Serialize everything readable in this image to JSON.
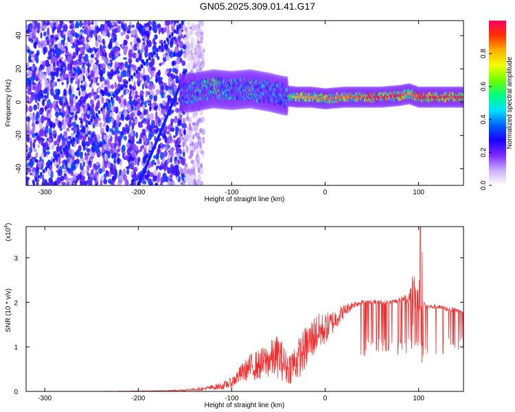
{
  "title": "GN05.2025.309.01.41.G17",
  "chart_data": [
    {
      "type": "heatmap",
      "title": "GN05.2025.309.01.41.G17",
      "xlabel": "Height of straight line (km)",
      "ylabel": "Frequency (Hz)",
      "xlim": [
        -320,
        148
      ],
      "ylim": [
        -50,
        49
      ],
      "xticks": [
        -300,
        -200,
        -100,
        0,
        100
      ],
      "yticks": [
        -40,
        -20,
        0,
        20,
        40
      ],
      "xtick_labels": [
        "-300",
        "-200",
        "-100",
        "0",
        "100"
      ],
      "ytick_labels": [
        "-40",
        "-20",
        "0",
        "20",
        "40"
      ],
      "colorbar": {
        "label": "Normalized spectral amplitude",
        "range": [
          0.0,
          1.0
        ],
        "ticks": [
          0.0,
          0.2,
          0.4,
          0.6,
          0.8
        ],
        "tick_labels": [
          "0.0",
          "0.2",
          "0.4",
          "0.6",
          "0.8"
        ],
        "colors": [
          "#ffffff",
          "#c9b0ff",
          "#7d2bff",
          "#1a00ff",
          "#0060ff",
          "#00e0ff",
          "#00ff80",
          "#6cff00",
          "#f0ff00",
          "#ffb000",
          "#ff3000",
          "#ff0060"
        ]
      },
      "ridge": {
        "x": [
          -155,
          -140,
          -120,
          -100,
          -80,
          -60,
          -45,
          -30,
          -15,
          0,
          20,
          40,
          60,
          80,
          90,
          100,
          120,
          148
        ],
        "y": [
          5,
          6,
          8,
          7,
          8,
          6,
          4,
          3,
          3,
          2,
          3,
          3,
          3,
          4,
          5,
          3,
          3,
          3
        ],
        "amplitude": [
          0.45,
          0.6,
          0.6,
          0.55,
          0.6,
          0.5,
          0.5,
          0.75,
          0.8,
          0.85,
          0.85,
          0.9,
          0.95,
          0.95,
          0.8,
          0.9,
          0.95,
          0.9
        ]
      },
      "noise_region": {
        "x_from": -320,
        "x_to": -150,
        "amplitude": 0.25
      }
    },
    {
      "type": "line",
      "xlabel": "Height of straight line (km)",
      "ylabel": "SNR (10 * v/v)",
      "y_multiplier_label": "(x10",
      "y_multiplier_exp": "4",
      "xlim": [
        -320,
        148
      ],
      "ylim": [
        0,
        3.7
      ],
      "xticks": [
        -300,
        -200,
        -100,
        0,
        100
      ],
      "yticks": [
        0,
        1,
        2,
        3
      ],
      "xtick_labels": [
        "-300",
        "-200",
        "-100",
        "0",
        "100"
      ],
      "ytick_labels": [
        "0",
        "1",
        "2",
        "3"
      ],
      "color": "#ee3030",
      "series": [
        {
          "name": "SNR",
          "x": [
            -320,
            -250,
            -180,
            -150,
            -130,
            -110,
            -100,
            -90,
            -80,
            -70,
            -60,
            -50,
            -40,
            -30,
            -20,
            -10,
            0,
            10,
            20,
            30,
            40,
            50,
            60,
            70,
            80,
            90,
            95,
            100,
            110,
            120,
            130,
            148
          ],
          "y": [
            0.0,
            0.0,
            0.01,
            0.03,
            0.06,
            0.12,
            0.2,
            0.4,
            0.55,
            0.6,
            0.7,
            0.8,
            0.5,
            0.7,
            1.0,
            1.3,
            1.4,
            1.6,
            1.8,
            1.95,
            2.0,
            2.0,
            2.0,
            2.0,
            2.05,
            2.1,
            2.3,
            2.0,
            1.9,
            1.9,
            1.85,
            1.8
          ],
          "noise": [
            0.0,
            0.0,
            0.01,
            0.02,
            0.04,
            0.08,
            0.12,
            0.2,
            0.3,
            0.35,
            0.4,
            0.5,
            0.35,
            0.45,
            0.5,
            0.45,
            0.35,
            0.25,
            0.15,
            0.08,
            0.05,
            0.05,
            0.05,
            0.05,
            0.06,
            0.15,
            0.4,
            0.25,
            0.05,
            0.05,
            0.05,
            0.05
          ],
          "dips_to": 0.8,
          "peak": {
            "x": 102,
            "y": 3.7
          }
        }
      ]
    }
  ]
}
